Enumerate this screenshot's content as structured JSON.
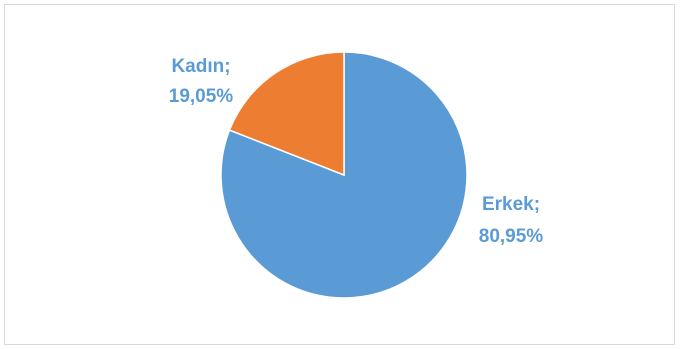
{
  "chart_data": {
    "type": "pie",
    "series": [
      {
        "slices": [
          {
            "name": "Erkek",
            "label": "Erkek;",
            "value_label": "80,95%",
            "value": 80.95,
            "color": "#5b9bd5"
          },
          {
            "name": "Kadın",
            "label": "Kadın;",
            "value_label": "19,05%",
            "value": 19.05,
            "color": "#ed7d31"
          }
        ]
      }
    ],
    "start_angle": "12 o'clock, clockwise",
    "legend": "none"
  }
}
